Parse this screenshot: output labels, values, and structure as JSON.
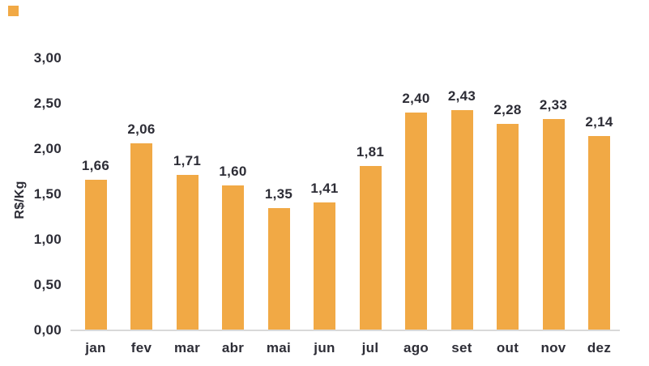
{
  "colors": {
    "bar": "#F1A945",
    "text": "#2D2D36",
    "axis_line": "#D9D9D9",
    "background": "#FFFFFF"
  },
  "decoration": {
    "corner_mark": "small orange square at top-left"
  },
  "chart_data": {
    "type": "bar",
    "categories": [
      "jan",
      "fev",
      "mar",
      "abr",
      "mai",
      "jun",
      "jul",
      "ago",
      "set",
      "out",
      "nov",
      "dez"
    ],
    "values": [
      1.66,
      2.06,
      1.71,
      1.6,
      1.35,
      1.41,
      1.81,
      2.4,
      2.43,
      2.28,
      2.33,
      2.14
    ],
    "value_labels": [
      "1,66",
      "2,06",
      "1,71",
      "1,60",
      "1,35",
      "1,41",
      "1,81",
      "2,40",
      "2,43",
      "2,28",
      "2,33",
      "2,14"
    ],
    "title": "",
    "xlabel": "",
    "ylabel": "R$/Kg",
    "ylim": [
      0,
      3.0
    ],
    "yticks": [
      0,
      0.5,
      1.0,
      1.5,
      2.0,
      2.5,
      3.0
    ],
    "ytick_labels": [
      "0,00",
      "0,50",
      "1,00",
      "1,50",
      "2,00",
      "2,50",
      "3,00"
    ],
    "grid": false,
    "legend": "none",
    "bar_color": "#F1A945",
    "decimal_separator": ","
  }
}
